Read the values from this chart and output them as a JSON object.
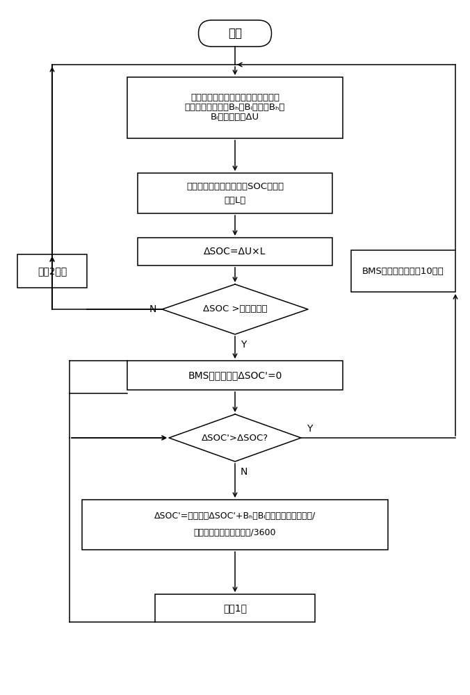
{
  "bg_color": "#ffffff",
  "line_color": "#000000",
  "text_color": "#000000",
  "start_label": "开始",
  "box1_line1": "测量并联电池组电压，记电压最高以",
  "box1_line2": "及最低的电池组为Bₕ和Bₗ，计算Bₕ与",
  "box1_line3": "Bₗ的电压差値ΔU",
  "box2_line1": "根据当前电池组温度以及SOC，查表",
  "box2_line2": "获得L値",
  "box3_line1": "ΔSOC=ΔU×L",
  "diamond1_line1": "ΔSOC >设定阈値？",
  "box4_line1": "BMS启动均衡，ΔSOC'=0",
  "diamond2_line1": "ΔSOC'>ΔSOC?",
  "box5_line1": "ΔSOC'=前一次的ΔSOC'+Bₕ与Bₗ的电流之差的绝对値/",
  "box5_line2": "被均衡并联电池组的容量/3600",
  "box6_line1": "延时1秒",
  "box_left_line1": "延时2分钟",
  "box_right_line1": "BMS结束均衡，延时10分钟",
  "label_N1": "N",
  "label_Y1": "Y",
  "label_N2": "N",
  "label_Y2": "Y"
}
